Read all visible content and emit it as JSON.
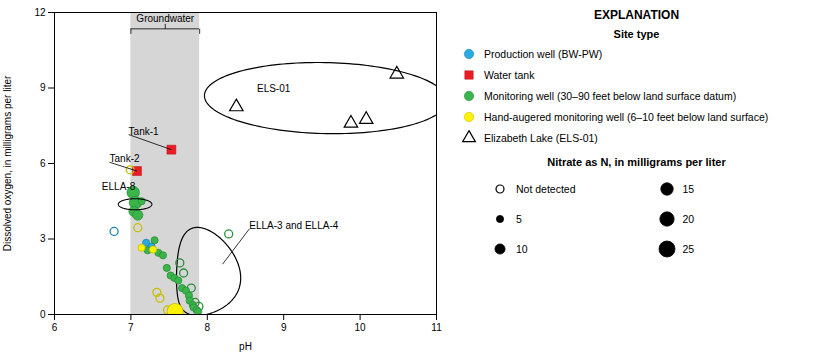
{
  "chart_data": {
    "type": "scatter",
    "xlabel": "pH",
    "ylabel": "Dissolved oxygen, in milligrams per liter",
    "xlim": [
      6,
      11
    ],
    "ylim": [
      0,
      12
    ],
    "xticks": [
      6,
      7,
      8,
      9,
      10,
      11
    ],
    "yticks": [
      0,
      3,
      6,
      9,
      12
    ],
    "grid": false,
    "legend": "right",
    "legend_title": "EXPLANATION",
    "legend_heading": "Site type",
    "series": [
      {
        "name": "Production well (BW-PW)",
        "color": "#29ABE2",
        "marker": "circle",
        "x": [
          6.78,
          7.2,
          7.27
        ],
        "y": [
          3.3,
          2.85,
          2.7
        ],
        "nitrate": [
          0,
          5,
          5
        ]
      },
      {
        "name": "Water tank",
        "color": "#ED1C24",
        "marker": "square",
        "x": [
          7.53,
          7.08
        ],
        "y": [
          6.55,
          5.7
        ]
      },
      {
        "name": "Monitoring well (30–90 feet below land surface datum)",
        "color": "#39B54A",
        "marker": "circle",
        "x": [
          7.03,
          7.06,
          7.04,
          7.09,
          7.14,
          7.22,
          7.31,
          7.36,
          7.42,
          7.47,
          7.52,
          7.57,
          7.62,
          7.67,
          7.72,
          7.76,
          7.77,
          7.81,
          7.82,
          7.86,
          7.88,
          7.64,
          7.69,
          7.79,
          7.84,
          7.89,
          8.28
        ],
        "y": [
          4.85,
          4.45,
          4.1,
          3.95,
          4.5,
          2.55,
          2.95,
          2.45,
          2.35,
          1.85,
          1.55,
          1.45,
          1.35,
          1.05,
          0.95,
          0.75,
          0.55,
          0.38,
          0.28,
          0.18,
          0.12,
          2.05,
          1.65,
          1.05,
          0.48,
          0.32,
          3.2
        ],
        "nitrate": [
          15,
          15,
          10,
          10,
          5,
          5,
          5,
          5,
          5,
          5,
          5,
          5,
          5,
          5,
          5,
          5,
          5,
          5,
          5,
          5,
          5,
          0,
          0,
          0,
          0,
          0,
          0
        ]
      },
      {
        "name": "Hand-augered monitoring well (6–10 feet below land surface)",
        "color": "#FFF200",
        "marker": "circle",
        "x": [
          6.99,
          7.09,
          7.14,
          7.29,
          7.34,
          7.38,
          7.48,
          7.53,
          7.58
        ],
        "y": [
          5.75,
          3.45,
          2.65,
          2.58,
          0.88,
          0.65,
          0.18,
          0.18,
          0.12
        ],
        "nitrate": [
          0,
          0,
          5,
          5,
          0,
          0,
          0,
          0,
          25
        ]
      },
      {
        "name": "Elizabeth Lake (ELS-01)",
        "color": "none",
        "marker": "triangle",
        "x": [
          8.38,
          9.88,
          10.08,
          10.48
        ],
        "y": [
          8.25,
          7.6,
          7.75,
          9.55
        ]
      }
    ],
    "nitrate_legend": {
      "title": "Nitrate as N, in milligrams per liter",
      "levels": [
        {
          "value": 0,
          "label": "Not detected"
        },
        5,
        10,
        15,
        20,
        25
      ]
    },
    "span": {
      "label": "Groundwater",
      "x1": 7.0,
      "x2": 7.9,
      "y": 11.35,
      "color": "#C8C8C8"
    },
    "shapes": [
      {
        "type": "enclosure",
        "cx": 7.87,
        "cy": 1.45,
        "rx": 0.42,
        "ry": 1.75
      },
      {
        "type": "ellipse",
        "cx": 9.55,
        "cy": 8.6,
        "width": 3.2,
        "height": 2.8,
        "angle": -15
      },
      {
        "type": "circle",
        "cx": 7.055,
        "cy": 4.38,
        "r": 0.22
      }
    ],
    "annotations": [
      {
        "text": "Tank-1",
        "x": 6.97,
        "y": 7.15,
        "target": [
          7.53,
          6.55
        ]
      },
      {
        "text": "Tank-2",
        "x": 6.72,
        "y": 6.05,
        "target": [
          7.08,
          5.7
        ]
      },
      {
        "text": "ELLA-8",
        "x": 6.62,
        "y": 4.95
      },
      {
        "text": "ELS-01",
        "x": 8.65,
        "y": 8.85
      },
      {
        "text": "ELLA-3 and ELLA-4",
        "x": 8.55,
        "y": 3.4,
        "target": [
          8.2,
          2.0
        ]
      }
    ]
  }
}
